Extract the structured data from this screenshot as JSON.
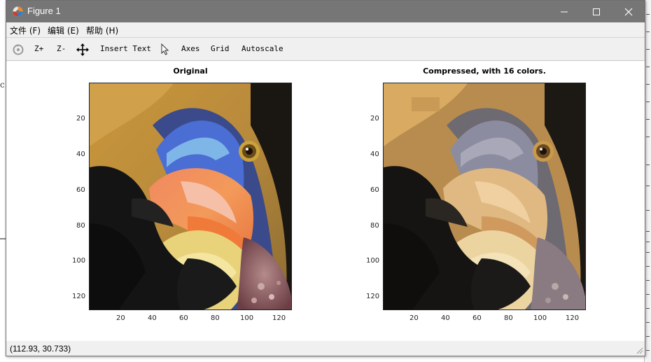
{
  "window": {
    "title": "Figure 1",
    "minimize_glyph": "—",
    "maximize_glyph": "☐",
    "close_glyph": "✕"
  },
  "menu": {
    "items": [
      {
        "label": "文件 (F)"
      },
      {
        "label": "编辑 (E)"
      },
      {
        "label": "帮助 (H)"
      }
    ]
  },
  "toolbar": {
    "rotate_icon": "rotate-icon",
    "zoom_in": "Z+",
    "zoom_out": "Z-",
    "pan_icon": "pan-icon",
    "insert_text": "Insert Text",
    "select_icon": "cursor-icon",
    "axes": "Axes",
    "grid": "Grid",
    "autoscale": "Autoscale"
  },
  "plots": [
    {
      "title": "Original",
      "y_ticks": [
        "20",
        "40",
        "60",
        "80",
        "100",
        "120"
      ],
      "x_ticks": [
        "20",
        "40",
        "60",
        "80",
        "100",
        "120"
      ],
      "image_desc": "hornbill bird photo"
    },
    {
      "title": "Compressed, with 16 colors.",
      "y_ticks": [
        "20",
        "40",
        "60",
        "80",
        "100",
        "120"
      ],
      "x_ticks": [
        "20",
        "40",
        "60",
        "80",
        "100",
        "120"
      ],
      "image_desc": "hornbill bird 16-color"
    }
  ],
  "status": {
    "coords": "(112.93, 30.733)"
  }
}
